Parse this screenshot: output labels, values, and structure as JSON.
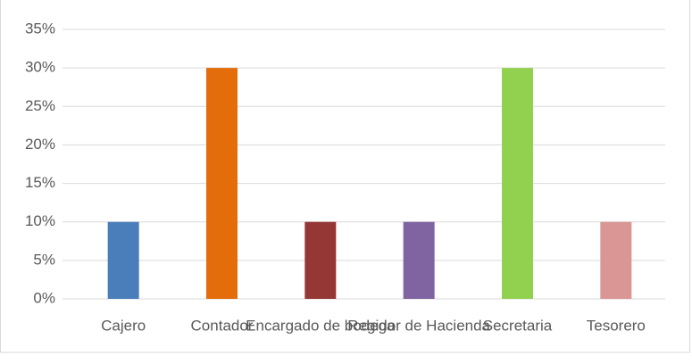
{
  "chart_data": {
    "type": "bar",
    "categories": [
      "Cajero",
      "Contador",
      "Encargado de bodega",
      "Regidor de Hacienda",
      "Secretaria",
      "Tesorero"
    ],
    "values": [
      10,
      30,
      10,
      10,
      30,
      10
    ],
    "colors": [
      "#4a7ebb",
      "#e46c0a",
      "#953735",
      "#8064a2",
      "#92d050",
      "#d99694"
    ],
    "ylim": [
      0,
      35
    ],
    "yticks": [
      {
        "value": 0,
        "label": "0%"
      },
      {
        "value": 5,
        "label": "5%"
      },
      {
        "value": 10,
        "label": "10%"
      },
      {
        "value": 15,
        "label": "15%"
      },
      {
        "value": 20,
        "label": "20%"
      },
      {
        "value": 25,
        "label": "25%"
      },
      {
        "value": 30,
        "label": "30%"
      },
      {
        "value": 35,
        "label": "35%"
      }
    ],
    "grid": true
  }
}
